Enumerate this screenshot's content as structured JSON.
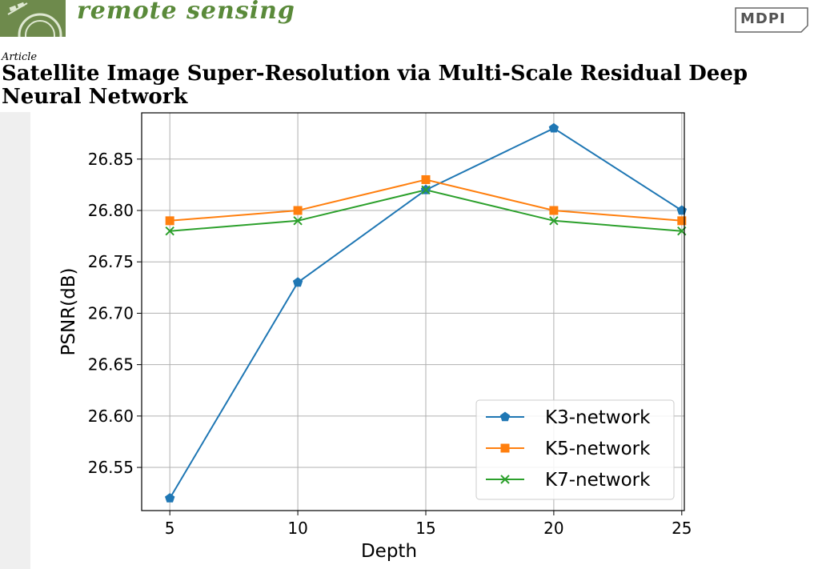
{
  "header": {
    "journal": "remote sensing",
    "publisher": "MDPI",
    "article_type": "Article",
    "title": "Satellite Image Super-Resolution via Multi-Scale Residual Deep Neural Network",
    "logo_icon": "satellite-globe-icon"
  },
  "chart_data": {
    "type": "line",
    "xlabel": "Depth",
    "ylabel": "PSNR(dB)",
    "x": [
      5,
      10,
      15,
      20,
      25
    ],
    "xticks": [
      "5",
      "10",
      "15",
      "20",
      "25"
    ],
    "yticks": [
      "26.55",
      "26.60",
      "26.65",
      "26.70",
      "26.75",
      "26.80",
      "26.85"
    ],
    "xlim": [
      3.9,
      25.1
    ],
    "ylim": [
      26.508,
      26.895
    ],
    "grid": true,
    "legend_position": "lower-right",
    "series": [
      {
        "name": "K3-network",
        "color": "#1f77b4",
        "marker": "pentagon",
        "values": [
          26.52,
          26.73,
          26.82,
          26.88,
          26.8
        ]
      },
      {
        "name": "K5-network",
        "color": "#ff7f0e",
        "marker": "square",
        "values": [
          26.79,
          26.8,
          26.83,
          26.8,
          26.79
        ]
      },
      {
        "name": "K7-network",
        "color": "#2ca02c",
        "marker": "x",
        "values": [
          26.78,
          26.79,
          26.82,
          26.79,
          26.78
        ]
      }
    ]
  }
}
